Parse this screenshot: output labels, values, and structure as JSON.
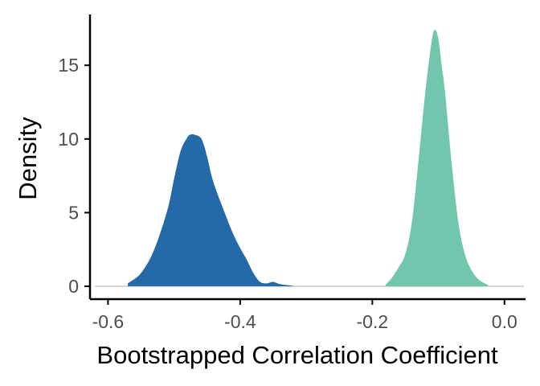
{
  "chart_data": {
    "type": "area",
    "title": "",
    "xlabel": "Bootstrapped Correlation Coefficient",
    "ylabel": "Density",
    "xlim": [
      -0.6,
      0.0
    ],
    "ylim": [
      0,
      17.5
    ],
    "x_ticks": [
      -0.6,
      -0.4,
      -0.2,
      0.0
    ],
    "x_tick_labels": [
      "-0.6",
      "-0.4",
      "-0.2",
      "0.0"
    ],
    "y_ticks": [
      0,
      5,
      10,
      15
    ],
    "y_tick_labels": [
      "0",
      "5",
      "10",
      "15"
    ],
    "grid": false,
    "legend": "none",
    "baseline": 0,
    "series": [
      {
        "color": "#2469a8",
        "x": [
          -0.57,
          -0.55,
          -0.53,
          -0.51,
          -0.5,
          -0.49,
          -0.48,
          -0.475,
          -0.47,
          -0.46,
          -0.455,
          -0.45,
          -0.44,
          -0.42,
          -0.41,
          -0.4,
          -0.39,
          -0.38,
          -0.37,
          -0.36,
          -0.35,
          -0.34,
          -0.32
        ],
        "y": [
          0.2,
          0.9,
          2.5,
          5.2,
          7.3,
          9.2,
          10.1,
          10.3,
          10.3,
          10.1,
          9.6,
          8.8,
          7.0,
          4.6,
          3.5,
          2.6,
          1.8,
          0.9,
          0.3,
          0.2,
          0.3,
          0.15,
          0.03
        ]
      },
      {
        "color": "#72c6ae",
        "x": [
          -0.18,
          -0.17,
          -0.16,
          -0.15,
          -0.14,
          -0.13,
          -0.12,
          -0.11,
          -0.105,
          -0.1,
          -0.095,
          -0.09,
          -0.08,
          -0.07,
          -0.06,
          -0.05,
          -0.04,
          -0.03,
          -0.025
        ],
        "y": [
          0.1,
          0.6,
          1.3,
          2.2,
          4.4,
          8.6,
          13.1,
          16.7,
          17.4,
          16.8,
          15.0,
          13.2,
          8.4,
          4.4,
          2.2,
          1.1,
          0.5,
          0.2,
          0.1
        ]
      }
    ]
  }
}
